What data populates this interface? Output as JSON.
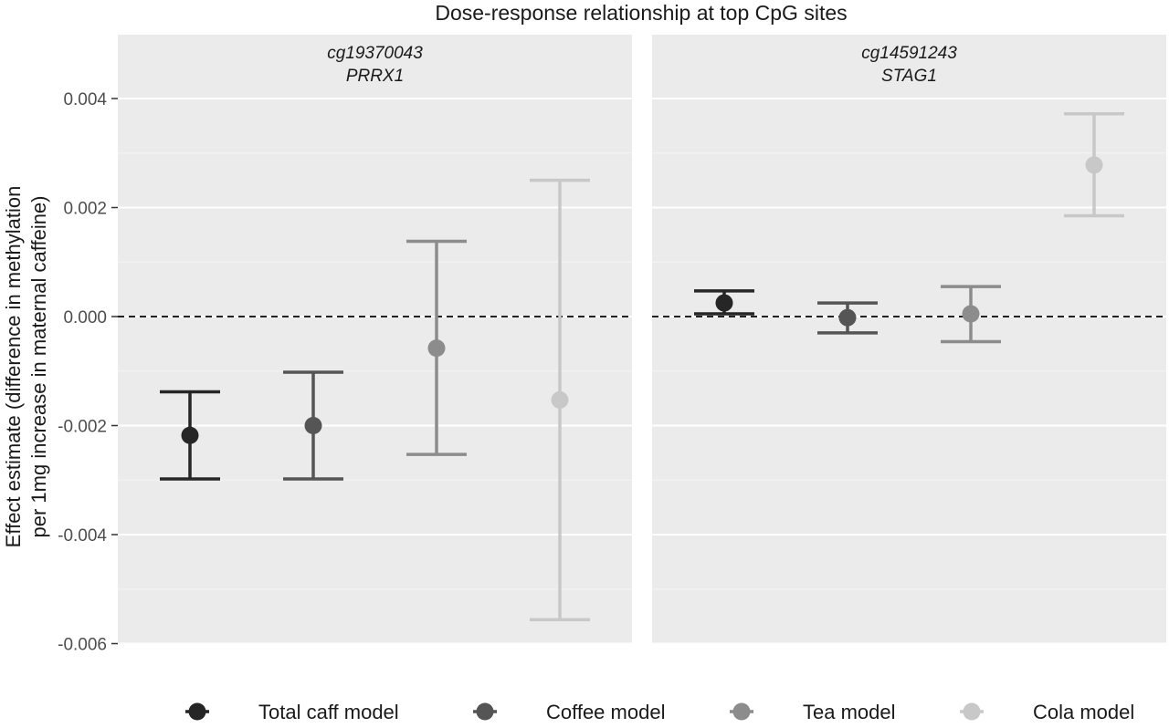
{
  "chart_data": {
    "type": "scatter",
    "title": "Dose-response relationship at top CpG sites",
    "ylabel_line1": "Effect estimate (difference in methylation",
    "ylabel_line2": "per 1mg increase in maternal caffeine)",
    "ylim": [
      -0.006,
      0.0051
    ],
    "yticks": [
      0.004,
      0.002,
      0.0,
      -0.002,
      -0.004,
      -0.006
    ],
    "ytick_labels": [
      "0.004",
      "0.002",
      "0.000",
      "-0.002",
      "-0.004",
      "-0.006"
    ],
    "reference_line": 0.0,
    "grid": true,
    "legend_position": "bottom",
    "panels": [
      {
        "cpg": "cg19370043",
        "gene": "PRRX1",
        "points": [
          {
            "model": "Total caff model",
            "estimate": -0.00218,
            "lower": -0.00298,
            "upper": -0.00138
          },
          {
            "model": "Coffee model",
            "estimate": -0.002,
            "lower": -0.00298,
            "upper": -0.00102
          },
          {
            "model": "Tea model",
            "estimate": -0.00058,
            "lower": -0.00253,
            "upper": 0.00138
          },
          {
            "model": "Cola model",
            "estimate": -0.00153,
            "lower": -0.00556,
            "upper": 0.0025
          }
        ]
      },
      {
        "cpg": "cg14591243",
        "gene": "STAG1",
        "points": [
          {
            "model": "Total caff model",
            "estimate": 0.00025,
            "lower": 5e-05,
            "upper": 0.00047
          },
          {
            "model": "Coffee model",
            "estimate": -2e-05,
            "lower": -0.0003,
            "upper": 0.00025
          },
          {
            "model": "Tea model",
            "estimate": 5e-05,
            "lower": -0.00046,
            "upper": 0.00055
          },
          {
            "model": "Cola model",
            "estimate": 0.00278,
            "lower": 0.00185,
            "upper": 0.00372
          }
        ]
      }
    ],
    "legend": [
      {
        "label": "Total caff model",
        "color": "#262626"
      },
      {
        "label": "Coffee model",
        "color": "#555555"
      },
      {
        "label": "Tea model",
        "color": "#8c8c8c"
      },
      {
        "label": "Cola model",
        "color": "#c8c8c8"
      }
    ]
  }
}
